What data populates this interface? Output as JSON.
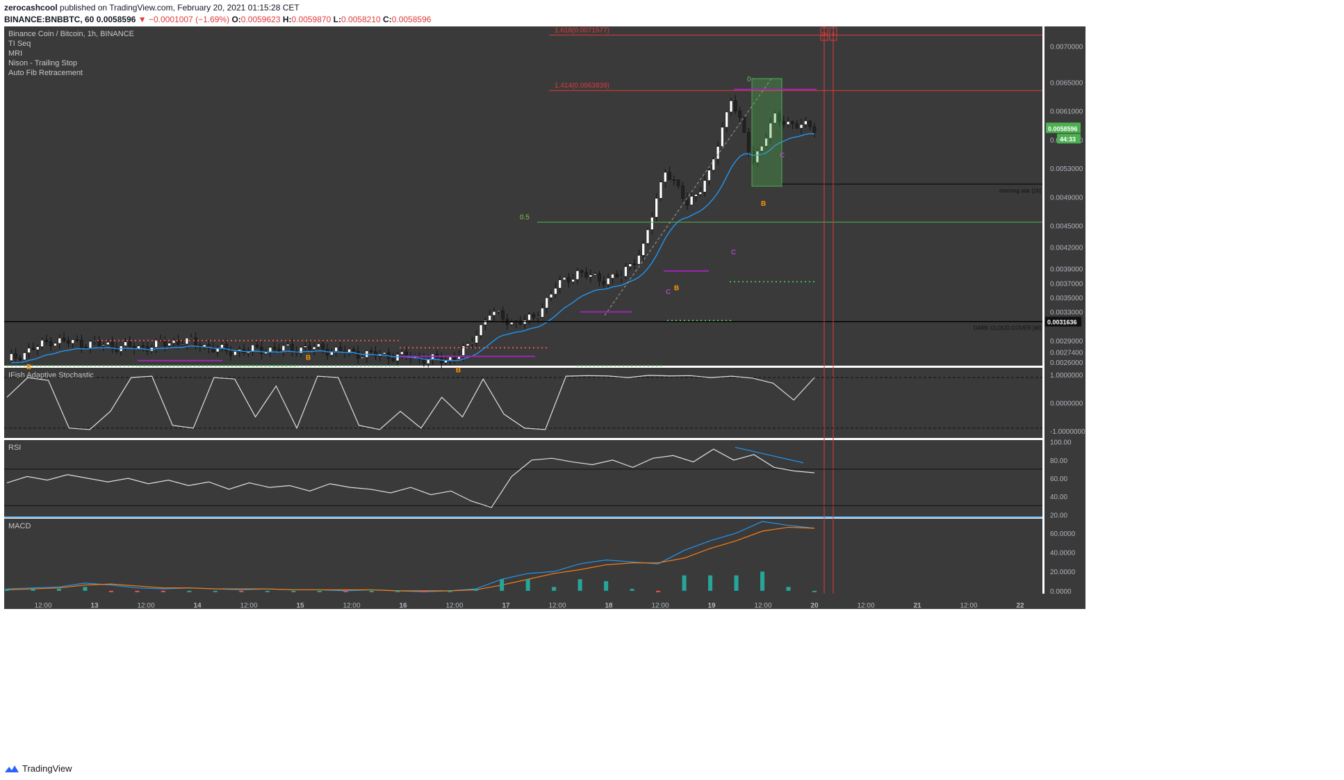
{
  "header": {
    "publisher": "zerocashcool",
    "published_text": "published on TradingView.com, February 20, 2021 01:15:28 CET",
    "symbol_line": "BINANCE:BNBBTC, 60",
    "last_price": "0.0058596",
    "change_text": "−0.0001007 (−1.69%)",
    "o_label": "O:",
    "o_value": "0.0059623",
    "h_label": "H:",
    "h_value": "0.0059870",
    "l_label": "L:",
    "l_value": "0.0058210",
    "c_label": "C:",
    "c_value": "0.0058596"
  },
  "legend": [
    "Binance Coin / Bitcoin, 1h, BINANCE",
    "TI Seq",
    "MRI",
    "Nison - Trailing Stop",
    "Auto Fib Retracement"
  ],
  "footer": {
    "brand": "TradingView"
  },
  "colors": {
    "bg": "#3a3a3a",
    "grid": "#4a4a4a",
    "up": "#ffffff",
    "down": "#222222",
    "fib": "#e03a3a",
    "mri_buy": "#4caf50",
    "mri_sell": "#ef5350",
    "trail": "#2196f3",
    "setup": "#9c27b0",
    "marker_b": "#ff9800"
  },
  "chart_data": [
    {
      "type": "candlestick",
      "title": "Binance Coin / Bitcoin, 1h, BINANCE",
      "x_ticks": [
        "12:00",
        "13",
        "12:00",
        "14",
        "12:00",
        "15",
        "12:00",
        "16",
        "12:00",
        "17",
        "12:00",
        "18",
        "12:00",
        "19",
        "12:00",
        "20",
        "12:00",
        "21",
        "12:00",
        "22"
      ],
      "y_ticks": [
        "0.0070000",
        "0.0065000",
        "0.0061000",
        "0.0057000",
        "0.0053000",
        "0.0049000",
        "0.0045000",
        "0.0042000",
        "0.0039000",
        "0.0037000",
        "0.0035000",
        "0.0033000",
        "0.0029000",
        "0.0027400",
        "0.0026000"
      ],
      "ylim": [
        0.00255,
        0.0072
      ],
      "price_series": {
        "x": [
          0,
          10,
          20,
          30,
          40,
          50,
          60,
          70,
          80,
          90,
          100,
          105,
          110,
          115,
          120,
          125,
          130,
          135,
          140,
          145,
          150,
          155,
          160,
          165,
          170,
          175,
          180,
          185,
          190,
          195,
          200,
          205,
          210,
          215,
          220,
          225,
          230
        ],
        "close": [
          0.00262,
          0.0029,
          0.00285,
          0.0028,
          0.0029,
          0.00275,
          0.00278,
          0.0028,
          0.00272,
          0.00268,
          0.00262,
          0.0028,
          0.0033,
          0.00315,
          0.0032,
          0.00365,
          0.00385,
          0.00375,
          0.0038,
          0.0042,
          0.0053,
          0.0048,
          0.0052,
          0.0063,
          0.0054,
          0.006,
          0.0059,
          0.00586,
          0.00586,
          0.00586,
          0.00586,
          0.00586,
          0.00586,
          0.00586,
          0.00586,
          0.00586,
          0.00586
        ],
        "last_index": 184
      },
      "fib_levels": [
        {
          "label": "1.618(0.0071577)",
          "value": 0.0071577
        },
        {
          "label": "1.414(0.0063839)",
          "value": 0.0063839
        },
        {
          "label": "0.5",
          "value": 0.00455
        },
        {
          "label": "0",
          "value": 0.00655
        }
      ],
      "horizontal_lines": [
        {
          "label": "DARK CLOUD COVER [W]",
          "value": 0.0031636,
          "price_tag": "0.0031636"
        },
        {
          "label": "morning star [1h]",
          "value": 0.00508
        }
      ],
      "price_tag": "0.0058596",
      "countdown": "44:33",
      "markers_b": [
        "B",
        "B",
        "B",
        "B",
        "B"
      ],
      "markers_c": [
        "C",
        "C",
        "C"
      ],
      "time_labels": [
        "1h",
        "4"
      ]
    },
    {
      "type": "line",
      "title": "IFish Adaptive Stochastic",
      "y_ticks": [
        "1.0000000",
        "0.0000000",
        "-1.0000000"
      ],
      "ylim": [
        -1.25,
        1.25
      ],
      "values": [
        0.2,
        0.9,
        0.8,
        -0.9,
        -0.95,
        -0.3,
        0.9,
        0.95,
        -0.8,
        -0.9,
        0.9,
        0.85,
        -0.5,
        0.6,
        -0.9,
        0.95,
        0.9,
        -0.8,
        -0.95,
        -0.3,
        -0.9,
        0.2,
        -0.5,
        0.85,
        -0.4,
        -0.9,
        -0.95,
        0.95,
        0.97,
        0.96,
        0.9,
        0.98,
        0.96,
        0.97,
        0.9,
        0.95,
        0.88,
        0.7,
        0.1,
        0.9
      ]
    },
    {
      "type": "line",
      "title": "RSI",
      "y_ticks": [
        "100.00",
        "80.00",
        "60.00",
        "40.00",
        "20.00"
      ],
      "ylim": [
        18,
        102
      ],
      "bands": [
        70,
        30
      ],
      "values": [
        55,
        62,
        58,
        64,
        60,
        56,
        60,
        54,
        58,
        52,
        56,
        48,
        55,
        50,
        52,
        46,
        54,
        50,
        48,
        44,
        50,
        42,
        46,
        35,
        28,
        62,
        80,
        82,
        78,
        75,
        80,
        72,
        82,
        85,
        78,
        92,
        80,
        86,
        72,
        68,
        66
      ]
    },
    {
      "type": "line",
      "title": "MACD",
      "y_ticks": [
        "60.0000",
        "40.0000",
        "20.0000",
        "0.0000"
      ],
      "ylim": [
        -3,
        75
      ],
      "series": [
        {
          "values": [
            2,
            3,
            4,
            8,
            6,
            3,
            2,
            3,
            2,
            1,
            2,
            1,
            1,
            0,
            1,
            0,
            -1,
            0,
            2,
            12,
            18,
            20,
            28,
            32,
            30,
            28,
            42,
            52,
            60,
            72,
            68,
            65
          ]
        },
        {
          "values": [
            1,
            2,
            3,
            6,
            7,
            5,
            3,
            3,
            2,
            2,
            2,
            1,
            1,
            1,
            1,
            0,
            0,
            0,
            1,
            6,
            12,
            18,
            22,
            27,
            29,
            29,
            34,
            44,
            52,
            62,
            66,
            65
          ]
        }
      ]
    }
  ]
}
